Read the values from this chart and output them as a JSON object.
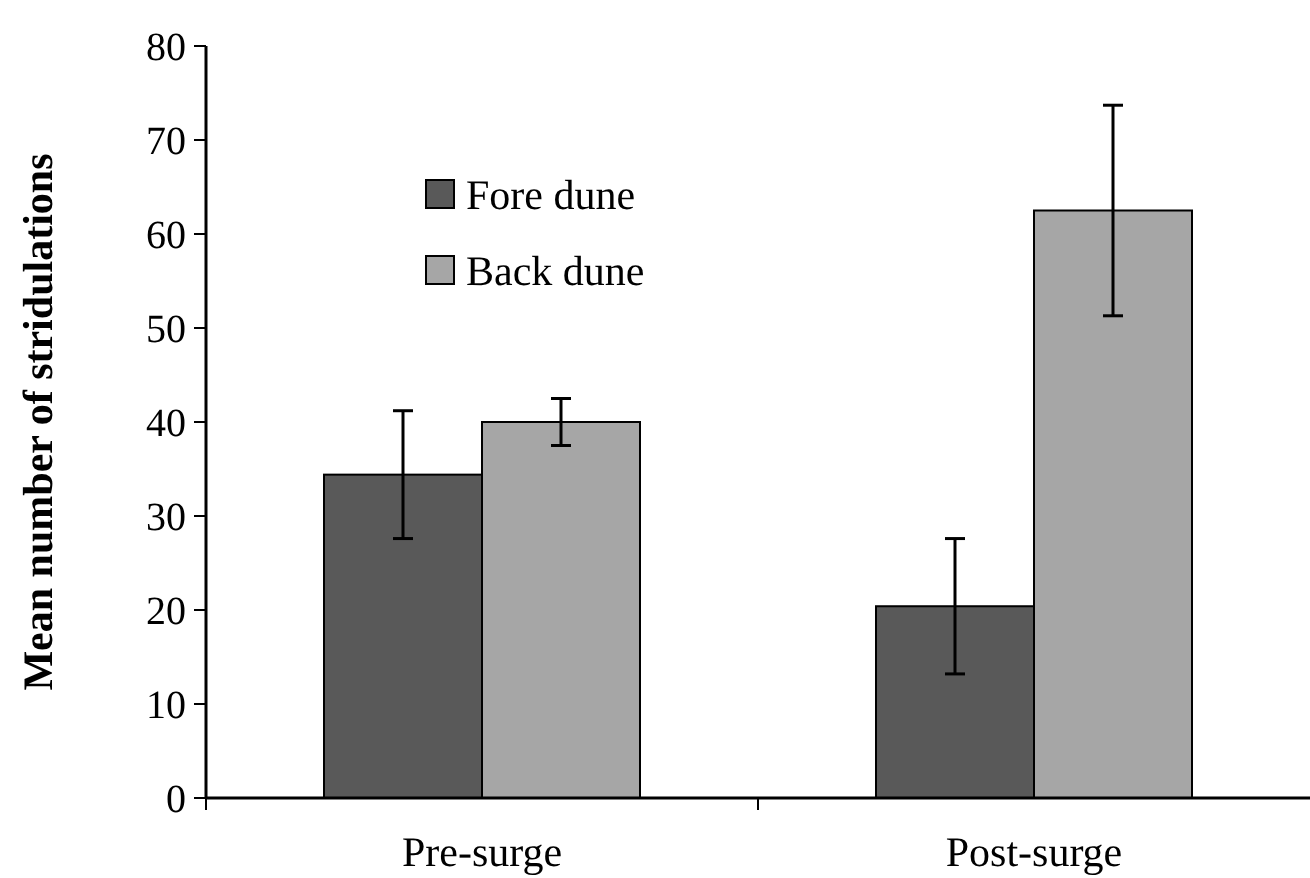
{
  "chart_data": {
    "type": "bar",
    "ylabel": "Mean number of stridulations",
    "categories": [
      "Pre-surge",
      "Post-surge"
    ],
    "series": [
      {
        "name": "Fore dune",
        "color": "#595959",
        "values": [
          34.4,
          20.4
        ],
        "errors": [
          6.8,
          7.2
        ]
      },
      {
        "name": "Back dune",
        "color": "#a6a6a6",
        "values": [
          40,
          62.5
        ],
        "errors": [
          2.5,
          11.2
        ]
      }
    ],
    "ylim": [
      0,
      80
    ],
    "yticks": [
      0,
      10,
      20,
      30,
      40,
      50,
      60,
      70,
      80
    ],
    "grid": false,
    "legend": "top left"
  }
}
